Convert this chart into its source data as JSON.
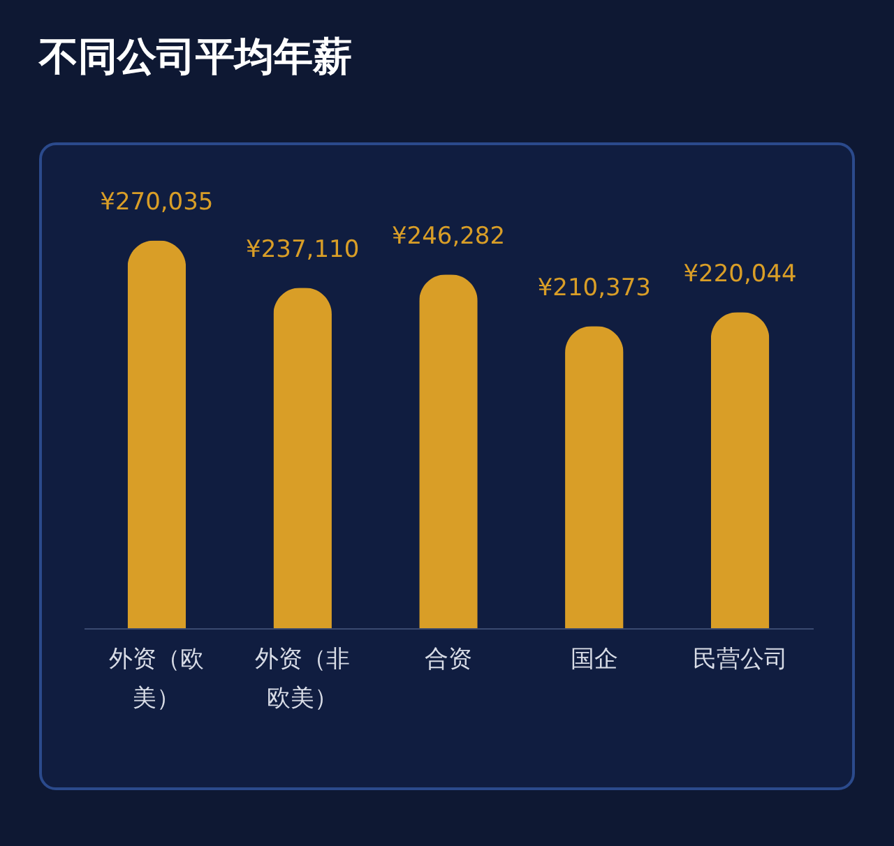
{
  "chart_data": {
    "type": "bar",
    "title": "不同公司平均年薪",
    "categories": [
      "外资（欧美）",
      "外资（非欧美）",
      "合资",
      "国企",
      "民营公司"
    ],
    "values": [
      270035,
      237110,
      246282,
      210373,
      220044
    ],
    "value_labels": [
      "¥270,035",
      "¥237,110",
      "¥246,282",
      "¥210,373",
      "¥220,044"
    ],
    "color": "#d99e27",
    "tick_labels": "x"
  }
}
